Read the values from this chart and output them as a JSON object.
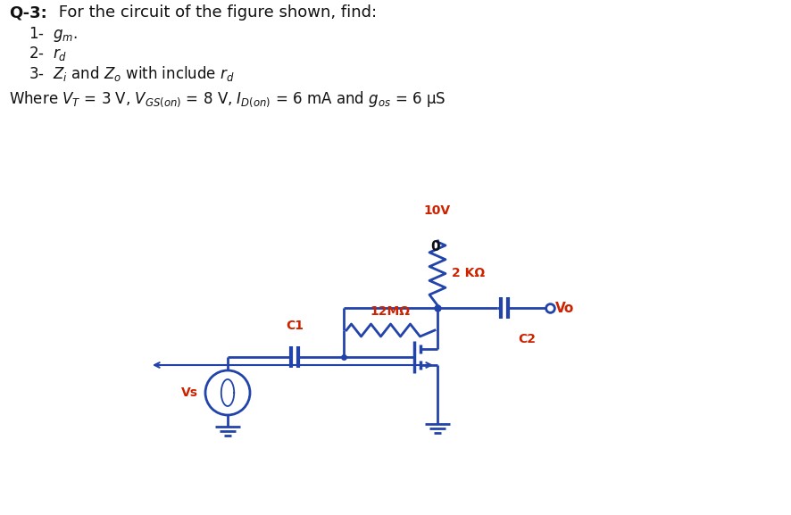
{
  "bg_color": "#ffffff",
  "circuit_color": "#2244aa",
  "red_color": "#cc2200",
  "black_color": "#111111",
  "title_bold": "Q-3:",
  "title_rest": " For the circuit of the figure shown, find:",
  "item1": "1-  $g_m$.",
  "item2": "2-  $r_d$",
  "item3": "3-  $Z_i$ and $Z_o$ with include $r_d$",
  "params": "Where $V_T$ = 3 V, $V_{GS(on)}$ = 8 V, $I_{D(on)}$ = 6 mA and $g_{os}$ = 6 μS",
  "vdd": "10V",
  "zero": "0",
  "rd_label": "2 KΩ",
  "rg_label": "12MΩ",
  "c1_label": "C1",
  "c2_label": "C2",
  "vs_label": "Vs",
  "vo_label": "Vo",
  "figsize": [
    8.86,
    5.77
  ],
  "dpi": 100
}
